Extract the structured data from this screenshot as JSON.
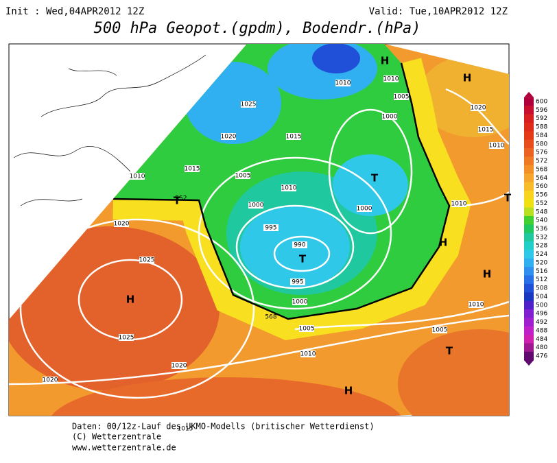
{
  "header": {
    "init": "Init : Wed,04APR2012 12Z",
    "valid": "Valid: Tue,10APR2012 12Z",
    "title": "500 hPa Geopot.(gpdm), Bodendr.(hPa)"
  },
  "map": {
    "isobar_labels": [
      "1010",
      "1010",
      "1005",
      "1025",
      "1000",
      "1020",
      "1015",
      "1020",
      "1015",
      "1010",
      "1015",
      "1010",
      "1005",
      "1010",
      "1000",
      "1000",
      "1010",
      "1020",
      "995",
      "990",
      "1025",
      "995",
      "1000",
      "1010",
      "1005",
      "1005",
      "1025",
      "1010",
      "1020",
      "1020",
      "1015"
    ],
    "geopotential_labels": [
      "552",
      "568"
    ],
    "pressure_centers": [
      "H",
      "H",
      "T",
      "T",
      "T",
      "H",
      "T",
      "H",
      "H",
      "T",
      "H"
    ]
  },
  "colorbar": {
    "labels": [
      600,
      596,
      592,
      588,
      584,
      580,
      576,
      572,
      568,
      564,
      560,
      556,
      552,
      548,
      540,
      536,
      532,
      528,
      524,
      520,
      516,
      512,
      508,
      504,
      500,
      496,
      492,
      488,
      484,
      480,
      476
    ],
    "colors": [
      "#b0003c",
      "#c8102e",
      "#d81e1e",
      "#e02a1a",
      "#e43a18",
      "#e84e1c",
      "#ec6220",
      "#f07a24",
      "#f49028",
      "#f6a62c",
      "#f8bc2a",
      "#f8d41e",
      "#f0e010",
      "#b8e020",
      "#40d030",
      "#20c860",
      "#20c8a0",
      "#20d0c8",
      "#30c8e8",
      "#30b0f0",
      "#3090f0",
      "#2870e8",
      "#2050d8",
      "#1838c0",
      "#5020c8",
      "#8020d0",
      "#a020d0",
      "#c020c8",
      "#d020b0",
      "#a01890",
      "#600a70"
    ]
  },
  "footer": {
    "lines": [
      "Daten: 00/12z-Lauf des UKMO-Modells (britischer Wetterdienst)",
      "(C) Wetterzentrale",
      "www.wetterzentrale.de"
    ]
  }
}
